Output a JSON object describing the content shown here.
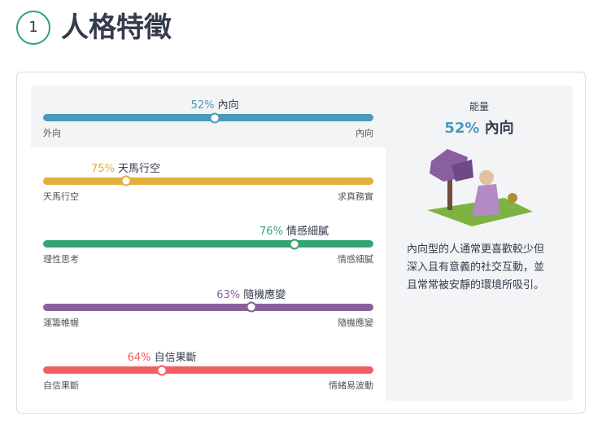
{
  "header": {
    "step": "1",
    "title": "人格特徵"
  },
  "traits": [
    {
      "value": 52,
      "value_label": "52%",
      "trait": "內向",
      "left": "外向",
      "right": "內向",
      "color": "#4a9aba"
    },
    {
      "value": 75,
      "value_label": "75%",
      "trait": "天馬行空",
      "left": "天馬行空",
      "right": "求真務實",
      "color": "#e4ae3a"
    },
    {
      "value": 76,
      "value_label": "76%",
      "trait": "情感細膩",
      "left": "理性思考",
      "right": "情感細膩",
      "color": "#33a474"
    },
    {
      "value": 63,
      "value_label": "63%",
      "trait": "隨機應變",
      "left": "運籌帷幄",
      "right": "隨機應變",
      "color": "#88619a"
    },
    {
      "value": 64,
      "value_label": "64%",
      "trait": "自信果斷",
      "left": "自信果斷",
      "right": "情緒易波動",
      "color": "#f25e62"
    }
  ],
  "side_panel": {
    "heading": "能量",
    "description": "內向型的人通常更喜歡較少但深入且有意義的社交互動，並且常常被安靜的環境所吸引。"
  }
}
